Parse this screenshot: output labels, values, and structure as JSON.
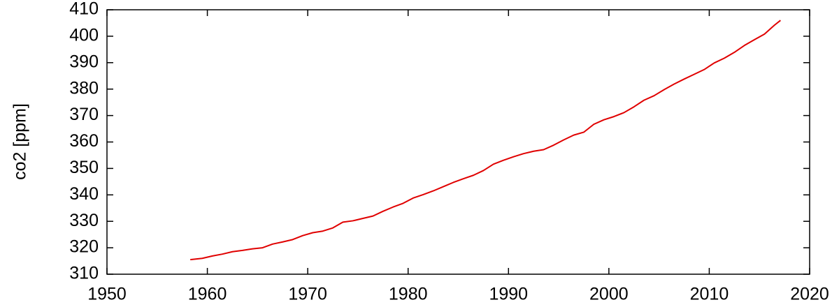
{
  "chart_data": {
    "type": "line",
    "ylabel": "co2 [ppm]",
    "x": [
      1958.3,
      1959.5,
      1960.5,
      1961.5,
      1962.5,
      1963.5,
      1964.5,
      1965.5,
      1966.5,
      1967.5,
      1968.5,
      1969.5,
      1970.5,
      1971.5,
      1972.5,
      1973.5,
      1974.5,
      1975.5,
      1976.5,
      1977.5,
      1978.5,
      1979.5,
      1980.5,
      1981.5,
      1982.5,
      1983.5,
      1984.5,
      1985.5,
      1986.5,
      1987.5,
      1988.5,
      1989.5,
      1990.5,
      1991.5,
      1992.5,
      1993.5,
      1994.5,
      1995.5,
      1996.5,
      1997.5,
      1998.5,
      1999.5,
      2000.5,
      2001.5,
      2002.5,
      2003.5,
      2004.5,
      2005.5,
      2006.5,
      2007.5,
      2008.5,
      2009.5,
      2010.5,
      2011.5,
      2012.5,
      2013.5,
      2014.5,
      2015.5,
      2016.5,
      2017.1
    ],
    "values": [
      315.5,
      316.0,
      316.9,
      317.6,
      318.5,
      319.0,
      319.6,
      320.0,
      321.4,
      322.2,
      323.1,
      324.6,
      325.7,
      326.3,
      327.5,
      329.7,
      330.2,
      331.1,
      332.0,
      333.8,
      335.4,
      336.8,
      338.8,
      340.1,
      341.5,
      343.1,
      344.7,
      346.1,
      347.4,
      349.2,
      351.6,
      353.1,
      354.4,
      355.6,
      356.5,
      357.1,
      358.8,
      360.8,
      362.6,
      363.7,
      366.7,
      368.4,
      369.6,
      371.1,
      373.3,
      375.8,
      377.5,
      379.8,
      381.9,
      383.8,
      385.6,
      387.4,
      389.9,
      391.7,
      393.9,
      396.5,
      398.7,
      400.8,
      404.2,
      406.0
    ],
    "color": "#e00000",
    "xlim": [
      1950,
      2020
    ],
    "xticks": [
      1950,
      1960,
      1970,
      1980,
      1990,
      2000,
      2010,
      2020
    ],
    "ylim": [
      310,
      410
    ],
    "yticks": [
      310,
      320,
      330,
      340,
      350,
      360,
      370,
      380,
      390,
      400,
      410
    ]
  }
}
